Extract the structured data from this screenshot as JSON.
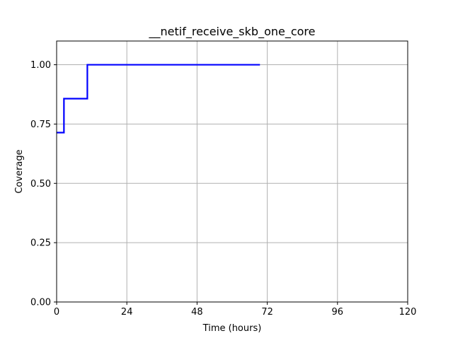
{
  "chart_data": {
    "type": "line",
    "title": "__netif_receive_skb_one_core",
    "xlabel": "Time (hours)",
    "ylabel": "Coverage",
    "xlim": [
      0,
      120
    ],
    "ylim": [
      0,
      1.1
    ],
    "xticks": [
      0,
      24,
      48,
      72,
      96,
      120
    ],
    "xtick_labels": [
      "0",
      "24",
      "48",
      "72",
      "96",
      "120"
    ],
    "yticks": [
      0,
      0.25,
      0.5,
      0.75,
      1.0
    ],
    "ytick_labels": [
      "0.00",
      "0.25",
      "0.50",
      "0.75",
      "1.00"
    ],
    "grid": true,
    "series": [
      {
        "step": "post",
        "color": "#0000ff",
        "x": [
          0,
          2.5,
          10.5,
          69.5
        ],
        "y": [
          0.714,
          0.857,
          1.0,
          1.0
        ]
      }
    ]
  }
}
